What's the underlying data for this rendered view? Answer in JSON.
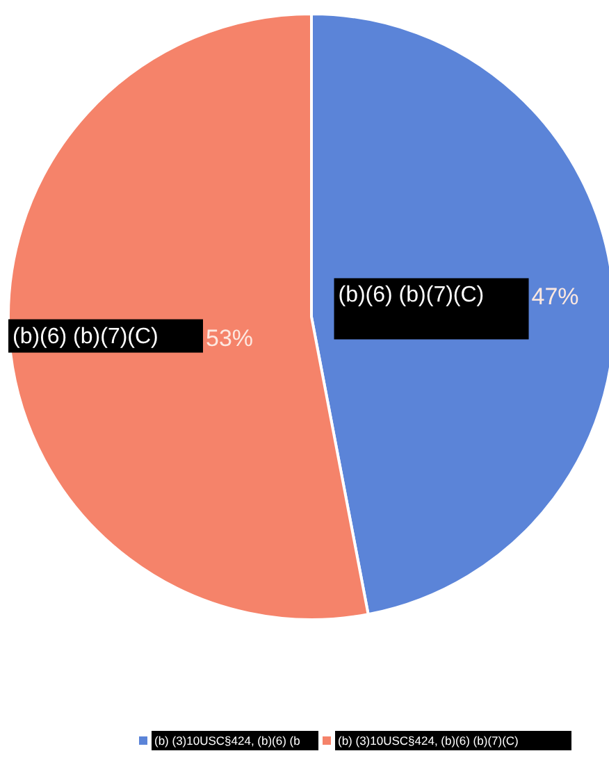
{
  "chart_data": {
    "type": "pie",
    "categories": [
      "(b) (3)10USC§424, (b)(6) (b",
      "(b) (3)10USC§424, (b)(6) (b)(7)(C)"
    ],
    "values": [
      47,
      53
    ],
    "colors": [
      "#5b84d8",
      "#f5836a"
    ],
    "value_labels": [
      "47%",
      "53%"
    ],
    "annotations": [
      "(b)(6) (b)(7)(C)",
      "(b)(6) (b)(7)(C)"
    ],
    "legend": "bottom"
  }
}
